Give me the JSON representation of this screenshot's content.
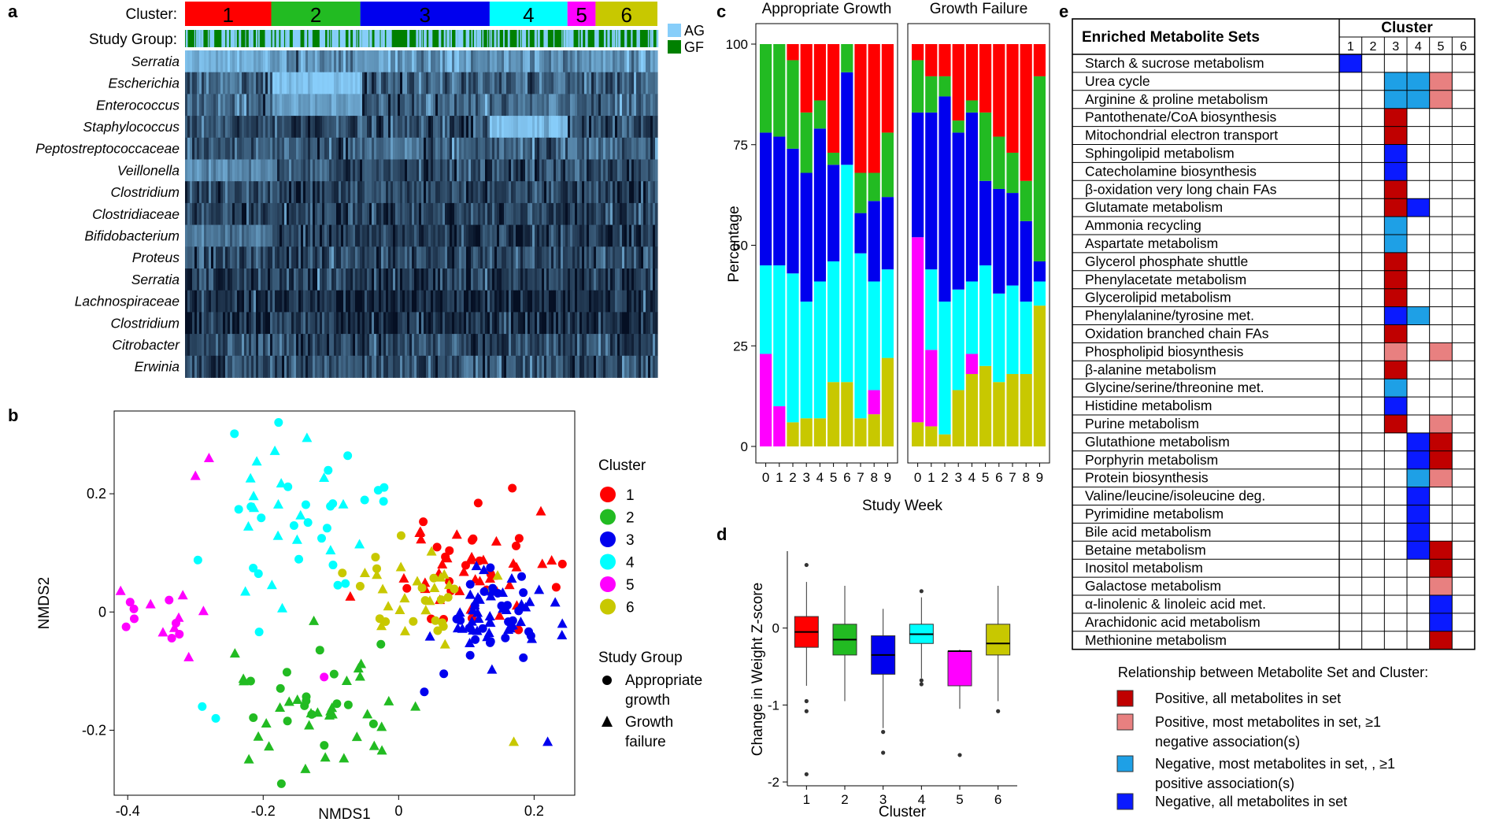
{
  "panel_labels": [
    "a",
    "b",
    "c",
    "d",
    "e"
  ],
  "colors": {
    "cluster": [
      "#ff0000",
      "#22bb22",
      "#0000ee",
      "#00ffff",
      "#ff00ff",
      "#c8c800"
    ],
    "ag": "#87cefa",
    "gf": "#008000",
    "pos_all": "#c00000",
    "pos_most": "#e88080",
    "neg_most": "#1ea0e6",
    "neg_all": "#0a1aff"
  },
  "chart_data": [
    {
      "id": "a",
      "type": "heatmap",
      "cluster_label": "Cluster:",
      "study_group_label": "Study Group:",
      "clusters": [
        "1",
        "2",
        "3",
        "4",
        "5",
        "6"
      ],
      "cluster_widths": [
        92,
        95,
        138,
        83,
        30,
        66
      ],
      "legend": [
        {
          "code": "AG",
          "name": "Appropriate growth"
        },
        {
          "code": "GF",
          "name": "Growth failure"
        }
      ],
      "rows": [
        "Serratia",
        "Escherichia",
        "Enterococcus",
        "Staphylococcus",
        "Peptostreptococcaceae",
        "Veillonella",
        "Clostridium",
        "Clostridiaceae",
        "Bifidobacterium",
        "Proteus",
        "Serratia",
        "Lachnospiraceae",
        "Clostridium",
        "Citrobacter",
        "Erwinia"
      ],
      "row_mean_level": [
        0.72,
        0.42,
        0.45,
        0.3,
        0.4,
        0.32,
        0.3,
        0.28,
        0.22,
        0.3,
        0.22,
        0.12,
        0.16,
        0.32,
        0.34
      ],
      "cluster_row_highlights": [
        {
          "row": "Serratia",
          "cluster": "1",
          "level": 0.85
        },
        {
          "row": "Escherichia",
          "cluster": "2",
          "level": 0.95
        },
        {
          "row": "Enterococcus",
          "cluster": "2",
          "level": 0.75
        },
        {
          "row": "Staphylococcus",
          "cluster": "4",
          "level": 0.95
        },
        {
          "row": "Veillonella",
          "cluster": "1",
          "level": 0.65
        },
        {
          "row": "Bifidobacterium",
          "cluster": "1",
          "level": 0.55
        }
      ]
    },
    {
      "id": "b",
      "type": "scatter",
      "xlabel": "NMDS1",
      "ylabel": "NMDS2",
      "xlim": [
        -0.42,
        0.26
      ],
      "ylim": [
        -0.31,
        0.34
      ],
      "xticks": [
        -0.4,
        -0.2,
        0,
        0.2
      ],
      "xtick_labels": [
        "-0.4",
        "-0.2",
        "0",
        "0.2"
      ],
      "yticks": [
        -0.2,
        0,
        0.2
      ],
      "ytick_labels": [
        "-0.2",
        "0",
        "0.2"
      ],
      "legend_cluster_title": "Cluster",
      "legend_clusters": [
        "1",
        "2",
        "3",
        "4",
        "5",
        "6"
      ],
      "legend_group_title": "Study Group",
      "legend_groups": [
        {
          "shape": "circle",
          "lines": [
            "Appropriate",
            "growth"
          ]
        },
        {
          "shape": "triangle",
          "lines": [
            "Growth",
            "failure"
          ]
        }
      ],
      "cluster_centers": [
        [
          0.1,
          0.07
        ],
        [
          -0.12,
          -0.16
        ],
        [
          0.14,
          -0.01
        ],
        [
          -0.14,
          0.17
        ],
        [
          -0.34,
          -0.02
        ],
        [
          0.04,
          0.03
        ]
      ],
      "cluster_spread": [
        [
          0.06,
          0.05
        ],
        [
          0.07,
          0.06
        ],
        [
          0.045,
          0.045
        ],
        [
          0.08,
          0.085
        ],
        [
          0.035,
          0.025
        ],
        [
          0.055,
          0.04
        ]
      ],
      "cluster_counts": [
        55,
        50,
        70,
        48,
        16,
        38
      ],
      "outliers": [
        {
          "x": -0.3,
          "y": 0.23,
          "cluster": "5",
          "shape": "triangle"
        },
        {
          "x": -0.28,
          "y": 0.26,
          "cluster": "5",
          "shape": "triangle"
        },
        {
          "x": -0.11,
          "y": -0.11,
          "cluster": "5",
          "shape": "circle"
        },
        {
          "x": 0.17,
          "y": -0.22,
          "cluster": "6",
          "shape": "triangle"
        },
        {
          "x": -0.29,
          "y": -0.16,
          "cluster": "4",
          "shape": "circle"
        },
        {
          "x": -0.27,
          "y": -0.18,
          "cluster": "4",
          "shape": "circle"
        },
        {
          "x": 0.22,
          "y": -0.22,
          "cluster": "3",
          "shape": "triangle"
        },
        {
          "x": 0.21,
          "y": 0.17,
          "cluster": "1",
          "shape": "triangle"
        }
      ]
    },
    {
      "id": "c",
      "type": "bar",
      "stacked": true,
      "facets": [
        "Appropriate Growth",
        "Growth Failure"
      ],
      "categories": [
        "0",
        "1",
        "2",
        "3",
        "4",
        "5",
        "6",
        "7",
        "8",
        "9"
      ],
      "xlabel": "Study Week",
      "ylabel": "Percentage",
      "ylim": [
        0,
        100
      ],
      "yticks": [
        0,
        25,
        50,
        75,
        100
      ],
      "series_order": [
        "6",
        "5",
        "4",
        "3",
        "2",
        "1"
      ],
      "data": {
        "Appropriate Growth": {
          "6": [
            0,
            0,
            6,
            7,
            7,
            16,
            16,
            7,
            8,
            22
          ],
          "5": [
            23,
            10,
            0,
            0,
            0,
            0,
            0,
            0,
            6,
            0
          ],
          "4": [
            22,
            35,
            37,
            29,
            34,
            30,
            54,
            41,
            27,
            22
          ],
          "3": [
            33,
            32,
            31,
            32,
            38,
            24,
            23,
            10,
            20,
            18
          ],
          "2": [
            22,
            23,
            22,
            15,
            7,
            3,
            7,
            10,
            7,
            16
          ],
          "1": [
            0,
            0,
            4,
            17,
            14,
            27,
            0,
            32,
            32,
            22
          ]
        },
        "Growth Failure": {
          "6": [
            6,
            5,
            3,
            14,
            18,
            20,
            16,
            18,
            18,
            35
          ],
          "5": [
            46,
            19,
            0,
            0,
            5,
            0,
            0,
            0,
            0,
            0
          ],
          "4": [
            0,
            20,
            33,
            25,
            18,
            25,
            22,
            22,
            18,
            6
          ],
          "3": [
            31,
            39,
            51,
            39,
            42,
            21,
            26,
            23,
            20,
            5
          ],
          "2": [
            13,
            9,
            5,
            3,
            3,
            17,
            13,
            10,
            10,
            46
          ],
          "1": [
            4,
            8,
            8,
            19,
            14,
            17,
            23,
            27,
            34,
            8
          ]
        }
      }
    },
    {
      "id": "d",
      "type": "box",
      "xlabel": "Cluster",
      "ylabel": "Change in Weight Z-score",
      "categories": [
        "1",
        "2",
        "3",
        "4",
        "5",
        "6"
      ],
      "ylim": [
        -2.05,
        1.0
      ],
      "yticks": [
        -2,
        -1,
        0
      ],
      "boxes": [
        {
          "q1": -0.25,
          "median": -0.05,
          "q3": 0.15,
          "whislo": -0.75,
          "whishi": 0.6,
          "outliers": [
            0.82,
            -0.95,
            -1.08,
            -1.9
          ]
        },
        {
          "q1": -0.35,
          "median": -0.15,
          "q3": 0.05,
          "whislo": -0.95,
          "whishi": 0.55,
          "outliers": []
        },
        {
          "q1": -0.6,
          "median": -0.35,
          "q3": -0.1,
          "whislo": -1.3,
          "whishi": 0.25,
          "outliers": [
            -1.35,
            -1.62
          ]
        },
        {
          "q1": -0.2,
          "median": -0.08,
          "q3": 0.05,
          "whislo": -0.65,
          "whishi": 0.4,
          "outliers": [
            0.48,
            -0.68,
            -0.73
          ]
        },
        {
          "q1": -0.75,
          "median": -0.3,
          "q3": -0.3,
          "whislo": -1.05,
          "whishi": -0.28,
          "outliers": [
            -1.65
          ]
        },
        {
          "q1": -0.35,
          "median": -0.2,
          "q3": 0.05,
          "whislo": -0.95,
          "whishi": 0.55,
          "outliers": [
            -1.08
          ]
        }
      ]
    },
    {
      "id": "e",
      "type": "table",
      "header": "Enriched Metabolite Sets",
      "cluster_header": "Cluster",
      "clusters": [
        "1",
        "2",
        "3",
        "4",
        "5",
        "6"
      ],
      "rows": [
        {
          "name": "Starch & sucrose metabolism",
          "cells": [
            "na",
            "",
            "",
            "",
            "",
            ""
          ]
        },
        {
          "name": "Urea cycle",
          "cells": [
            "",
            "",
            "nm",
            "nm",
            "pm",
            ""
          ]
        },
        {
          "name": "Arginine & proline metabolism",
          "cells": [
            "",
            "",
            "nm",
            "nm",
            "pm",
            ""
          ]
        },
        {
          "name": "Pantothenate/CoA biosynthesis",
          "cells": [
            "",
            "",
            "pa",
            "",
            "",
            ""
          ]
        },
        {
          "name": "Mitochondrial electron transport",
          "cells": [
            "",
            "",
            "pa",
            "",
            "",
            ""
          ]
        },
        {
          "name": "Sphingolipid metabolism",
          "cells": [
            "",
            "",
            "na",
            "",
            "",
            ""
          ]
        },
        {
          "name": "Catecholamine biosynthesis",
          "cells": [
            "",
            "",
            "na",
            "",
            "",
            ""
          ]
        },
        {
          "name": "β-oxidation very long chain FAs",
          "cells": [
            "",
            "",
            "pa",
            "",
            "",
            ""
          ]
        },
        {
          "name": "Glutamate metabolism",
          "cells": [
            "",
            "",
            "pa",
            "na",
            "",
            ""
          ]
        },
        {
          "name": "Ammonia recycling",
          "cells": [
            "",
            "",
            "nm",
            "",
            "",
            ""
          ]
        },
        {
          "name": "Aspartate metabolism",
          "cells": [
            "",
            "",
            "nm",
            "",
            "",
            ""
          ]
        },
        {
          "name": "Glycerol phosphate shuttle",
          "cells": [
            "",
            "",
            "pa",
            "",
            "",
            ""
          ]
        },
        {
          "name": "Phenylacetate metabolism",
          "cells": [
            "",
            "",
            "pa",
            "",
            "",
            ""
          ]
        },
        {
          "name": "Glycerolipid metabolism",
          "cells": [
            "",
            "",
            "pa",
            "",
            "",
            ""
          ]
        },
        {
          "name": "Phenylalanine/tyrosine met.",
          "cells": [
            "",
            "",
            "na",
            "nm",
            "",
            ""
          ]
        },
        {
          "name": "Oxidation branched chain FAs",
          "cells": [
            "",
            "",
            "pa",
            "",
            "",
            ""
          ]
        },
        {
          "name": "Phospholipid biosynthesis",
          "cells": [
            "",
            "",
            "pm",
            "",
            "pm",
            ""
          ]
        },
        {
          "name": "β-alanine metabolism",
          "cells": [
            "",
            "",
            "pa",
            "",
            "",
            ""
          ]
        },
        {
          "name": "Glycine/serine/threonine met.",
          "cells": [
            "",
            "",
            "nm",
            "",
            "",
            ""
          ]
        },
        {
          "name": "Histidine metabolism",
          "cells": [
            "",
            "",
            "na",
            "",
            "",
            ""
          ]
        },
        {
          "name": "Purine metabolism",
          "cells": [
            "",
            "",
            "pa",
            "",
            "pm",
            ""
          ]
        },
        {
          "name": "Glutathione metabolism",
          "cells": [
            "",
            "",
            "",
            "na",
            "pa",
            ""
          ]
        },
        {
          "name": "Porphyrin metabolism",
          "cells": [
            "",
            "",
            "",
            "na",
            "pa",
            ""
          ]
        },
        {
          "name": "Protein biosynthesis",
          "cells": [
            "",
            "",
            "",
            "nm",
            "pm",
            ""
          ]
        },
        {
          "name": "Valine/leucine/isoleucine deg.",
          "cells": [
            "",
            "",
            "",
            "na",
            "",
            ""
          ]
        },
        {
          "name": "Pyrimidine metabolism",
          "cells": [
            "",
            "",
            "",
            "na",
            "",
            ""
          ]
        },
        {
          "name": "Bile acid metabolism",
          "cells": [
            "",
            "",
            "",
            "na",
            "",
            ""
          ]
        },
        {
          "name": "Betaine metabolism",
          "cells": [
            "",
            "",
            "",
            "na",
            "pa",
            ""
          ]
        },
        {
          "name": "Inositol metabolism",
          "cells": [
            "",
            "",
            "",
            "",
            "pa",
            ""
          ]
        },
        {
          "name": "Galactose metabolism",
          "cells": [
            "",
            "",
            "",
            "",
            "pm",
            ""
          ]
        },
        {
          "name": "α-linolenic & linoleic acid met.",
          "cells": [
            "",
            "",
            "",
            "",
            "na",
            ""
          ]
        },
        {
          "name": "Arachidonic acid metabolism",
          "cells": [
            "",
            "",
            "",
            "",
            "na",
            ""
          ]
        },
        {
          "name": "Methionine metabolism",
          "cells": [
            "",
            "",
            "",
            "",
            "pa",
            ""
          ]
        }
      ],
      "legend_title": "Relationship between Metabolite Set and Cluster:",
      "legend_items": [
        {
          "code": "pa",
          "lines": [
            "Positive, all metabolites in set"
          ]
        },
        {
          "code": "pm",
          "lines": [
            "Positive, most metabolites in set, ≥1",
            "negative association(s)"
          ]
        },
        {
          "code": "nm",
          "lines": [
            "Negative, most metabolites in set, , ≥1",
            "positive association(s)"
          ]
        },
        {
          "code": "na",
          "lines": [
            "Negative, all metabolites in set"
          ]
        }
      ]
    }
  ]
}
